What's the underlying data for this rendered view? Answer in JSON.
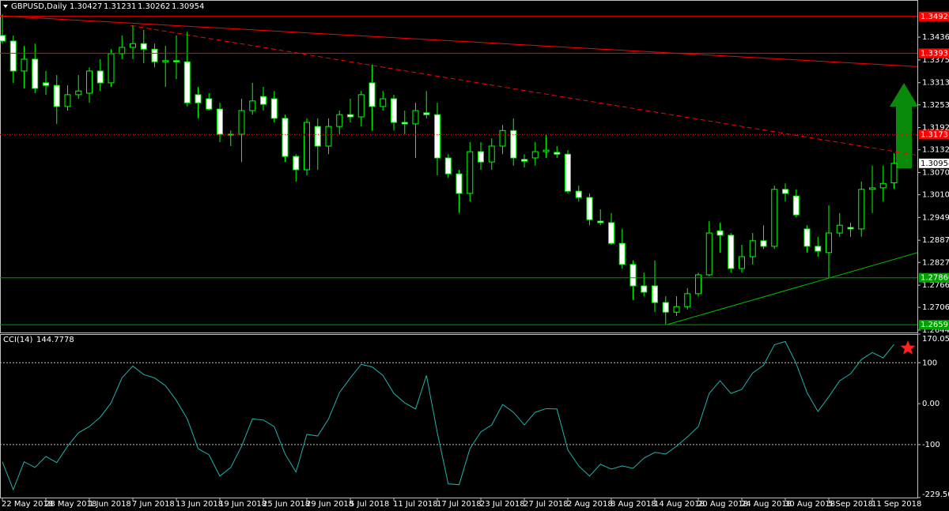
{
  "chart_data": [
    {
      "type": "candlestick",
      "title": "GBPUSD,Daily",
      "categories": [
        "22 May 2018",
        null,
        null,
        null,
        "28 May 2018",
        null,
        null,
        null,
        "1 Jun 2018",
        null,
        null,
        null,
        "7 Jun 2018",
        null,
        null,
        null,
        "13 Jun 2018",
        null,
        null,
        null,
        "19 Jun 2018",
        null,
        null,
        null,
        "25 Jun 2018",
        null,
        null,
        null,
        "29 Jun 2018",
        null,
        null,
        null,
        "5 Jul 2018",
        null,
        null,
        null,
        "11 Jul 2018",
        null,
        null,
        null,
        "17 Jul 2018",
        null,
        null,
        null,
        "23 Jul 2018",
        null,
        null,
        null,
        "27 Jul 2018",
        null,
        null,
        null,
        "2 Aug 2018",
        null,
        null,
        null,
        "8 Aug 2018",
        null,
        null,
        null,
        "14 Aug 2018",
        null,
        null,
        null,
        "20 Aug 2018",
        null,
        null,
        null,
        "24 Aug 2018",
        null,
        null,
        null,
        "30 Aug 2018",
        null,
        null,
        null,
        "5 Sep 2018",
        null,
        null,
        null,
        "11 Sep 2018",
        null,
        null
      ],
      "open": [
        1.3441,
        1.3426,
        1.3345,
        1.3377,
        1.3313,
        1.3306,
        1.3249,
        1.3281,
        1.3285,
        1.3345,
        1.3313,
        1.3392,
        1.3409,
        1.3419,
        1.3404,
        1.337,
        1.3373,
        1.337,
        1.3281,
        1.327,
        1.3242,
        1.3174,
        1.3174,
        1.3238,
        1.3276,
        1.327,
        1.3217,
        1.3114,
        1.3078,
        1.3195,
        1.3142,
        1.3195,
        1.3227,
        1.3221,
        1.3313,
        1.3249,
        1.327,
        1.3206,
        1.3202,
        1.3232,
        1.3227,
        1.311,
        1.3067,
        1.3014,
        1.3127,
        1.3099,
        1.3142,
        1.3184,
        1.3106,
        1.311,
        1.3127,
        1.3125,
        1.312,
        1.302,
        1.3003,
        1.2939,
        1.2935,
        1.2879,
        1.2822,
        1.2764,
        1.2764,
        1.2719,
        1.2693,
        1.2708,
        1.2743,
        1.2794,
        1.2913,
        1.2901,
        1.2811,
        1.2843,
        1.2886,
        1.2871,
        1.3025,
        1.3007,
        1.2918,
        1.2871,
        1.2854,
        1.2907,
        1.2922,
        1.2918,
        1.3025,
        1.3029,
        1.30427
      ],
      "high": [
        1.3498,
        1.3441,
        1.3413,
        1.3419,
        1.3345,
        1.3334,
        1.3306,
        1.3334,
        1.3355,
        1.3377,
        1.3404,
        1.3441,
        1.3468,
        1.3456,
        1.3419,
        1.3413,
        1.3441,
        1.3451,
        1.3302,
        1.3285,
        1.3259,
        1.3184,
        1.327,
        1.3313,
        1.3302,
        1.3291,
        1.3227,
        1.312,
        1.3217,
        1.3217,
        1.3217,
        1.3238,
        1.327,
        1.3291,
        1.3362,
        1.3291,
        1.3281,
        1.3238,
        1.3259,
        1.3291,
        1.3259,
        1.312,
        1.3078,
        1.3153,
        1.3153,
        1.3163,
        1.3199,
        1.3217,
        1.312,
        1.3153,
        1.3174,
        1.3142,
        1.3131,
        1.3035,
        1.3014,
        1.2971,
        1.2961,
        1.2918,
        1.2833,
        1.28,
        1.2833,
        1.2736,
        1.2736,
        1.2758,
        1.28,
        1.2939,
        1.2935,
        1.2907,
        1.2875,
        1.2907,
        1.2928,
        1.3035,
        1.3041,
        1.3025,
        1.2928,
        1.2897,
        1.2982,
        1.2961,
        1.2935,
        1.3046,
        1.3089,
        1.3089,
        1.31231
      ],
      "low": [
        1.3419,
        1.3313,
        1.3298,
        1.3285,
        1.3281,
        1.3202,
        1.3238,
        1.327,
        1.3259,
        1.3291,
        1.3302,
        1.3377,
        1.3377,
        1.3366,
        1.3355,
        1.3302,
        1.3323,
        1.3249,
        1.3217,
        1.3238,
        1.3153,
        1.3142,
        1.3099,
        1.3227,
        1.3238,
        1.3206,
        1.3099,
        1.3046,
        1.3063,
        1.3078,
        1.312,
        1.3174,
        1.3206,
        1.3195,
        1.3184,
        1.3238,
        1.3184,
        1.3174,
        1.311,
        1.3217,
        1.3063,
        1.3056,
        1.2961,
        1.2992,
        1.3078,
        1.3078,
        1.312,
        1.3089,
        1.3084,
        1.3089,
        1.311,
        1.311,
        1.3014,
        1.2992,
        1.2928,
        1.2928,
        1.2875,
        1.2811,
        1.2726,
        1.2736,
        1.2693,
        1.2659,
        1.2683,
        1.27,
        1.2736,
        1.279,
        1.2854,
        1.28,
        1.28,
        1.2822,
        1.2864,
        1.2864,
        1.2992,
        1.295,
        1.2854,
        1.2843,
        1.2786,
        1.2897,
        1.2897,
        1.2897,
        1.2961,
        1.2992,
        1.30262
      ],
      "close": [
        1.3426,
        1.3345,
        1.3377,
        1.3298,
        1.3306,
        1.3249,
        1.3281,
        1.3291,
        1.3345,
        1.3313,
        1.3392,
        1.3409,
        1.3419,
        1.3404,
        1.337,
        1.3373,
        1.337,
        1.3259,
        1.3259,
        1.3242,
        1.3174,
        1.3174,
        1.3238,
        1.3264,
        1.3255,
        1.3217,
        1.3114,
        1.3078,
        1.3206,
        1.3142,
        1.3195,
        1.3227,
        1.3221,
        1.3281,
        1.3249,
        1.327,
        1.3206,
        1.3202,
        1.3238,
        1.3227,
        1.311,
        1.3067,
        1.3014,
        1.3127,
        1.3099,
        1.3142,
        1.3184,
        1.311,
        1.3101,
        1.3127,
        1.3131,
        1.312,
        1.302,
        1.3003,
        1.2943,
        1.2935,
        1.2879,
        1.2822,
        1.2764,
        1.2747,
        1.2719,
        1.2693,
        1.2708,
        1.2743,
        1.2794,
        1.2907,
        1.2901,
        1.2811,
        1.2843,
        1.2886,
        1.2871,
        1.3025,
        1.3014,
        1.2956,
        1.2871,
        1.2858,
        1.2907,
        1.2928,
        1.2918,
        1.3025,
        1.3029,
        1.3041,
        1.30954
      ],
      "ylim": [
        1.2638,
        1.3537
      ],
      "yticks": [
        1.34365,
        {
          "value": 1.3375,
          "label": "1.33750"
        },
        1.33135,
        1.32535,
        {
          "value": 1.3192,
          "label": "1.31920"
        },
        {
          "value": 1.3132,
          "label": "1.31320"
        },
        1.30705,
        1.30105,
        {
          "value": 1.2949,
          "label": "1.29490"
        },
        1.28875,
        1.28275,
        {
          "value": 1.2766,
          "label": "1.27660"
        },
        {
          "value": 1.2706,
          "label": "1.27060"
        },
        1.26445
      ],
      "levels": [
        {
          "value": 1.34926,
          "color": "#ff0000",
          "style": "solid"
        },
        {
          "value": 1.33931,
          "color": "#ff0000",
          "style": "solid"
        },
        {
          "value": 1.31731,
          "color": "#ff0000",
          "style": "dotted"
        },
        {
          "value": 1.2786,
          "label": "1.27860",
          "color": "#00a000",
          "style": "solid"
        },
        {
          "value": 1.26591,
          "color": "#00a000",
          "style": "solid"
        }
      ],
      "trendlines": [
        {
          "points": [
            [
              -0.2,
              1.3494
            ],
            [
              84.15,
              1.3357
            ]
          ],
          "color": "#ff0000",
          "style": "solid"
        },
        {
          "points": [
            [
              11.8,
              1.3468
            ],
            [
              84.15,
              1.3117
            ]
          ],
          "color": "#ff0000",
          "style": "dashed"
        },
        {
          "points": [
            [
              61.1,
              1.2659
            ],
            [
              84.15,
              1.2854
            ]
          ],
          "color": "#00c000",
          "style": "solid"
        }
      ],
      "up_color": "#000000",
      "down_color": "#ffffff",
      "wick_color": "#00ff00"
    },
    {
      "type": "line",
      "title": "CCI(14)",
      "values": [
        -142,
        -210,
        -142,
        -156,
        -129,
        -144,
        -104,
        -71,
        -56,
        -33,
        2,
        63,
        92,
        71,
        63,
        44,
        8,
        -37,
        -110,
        -125,
        -177,
        -156,
        -104,
        -37,
        -40,
        -56,
        -123,
        -167,
        -75,
        -79,
        -37,
        27,
        63,
        96,
        90,
        69,
        25,
        2,
        -13,
        69,
        -71,
        -196,
        -198,
        -110,
        -69,
        -52,
        -2,
        -21,
        -52,
        -21,
        -12,
        -13,
        -113,
        -152,
        -177,
        -148,
        -160,
        -152,
        -158,
        -133,
        -119,
        -123,
        -104,
        -81,
        -56,
        25,
        56,
        25,
        35,
        75,
        94,
        144,
        152,
        98,
        27,
        -19,
        17,
        56,
        73,
        108,
        125,
        112,
        144.7778
      ],
      "color": "#20b2aa",
      "ylim": [
        -229.5038,
        170.0512
      ],
      "yticks": [
        170.0512,
        100,
        {
          "value": 0,
          "label": "0.00"
        },
        -100,
        -229.5038
      ],
      "levels": [
        100,
        -100
      ]
    }
  ]
}
